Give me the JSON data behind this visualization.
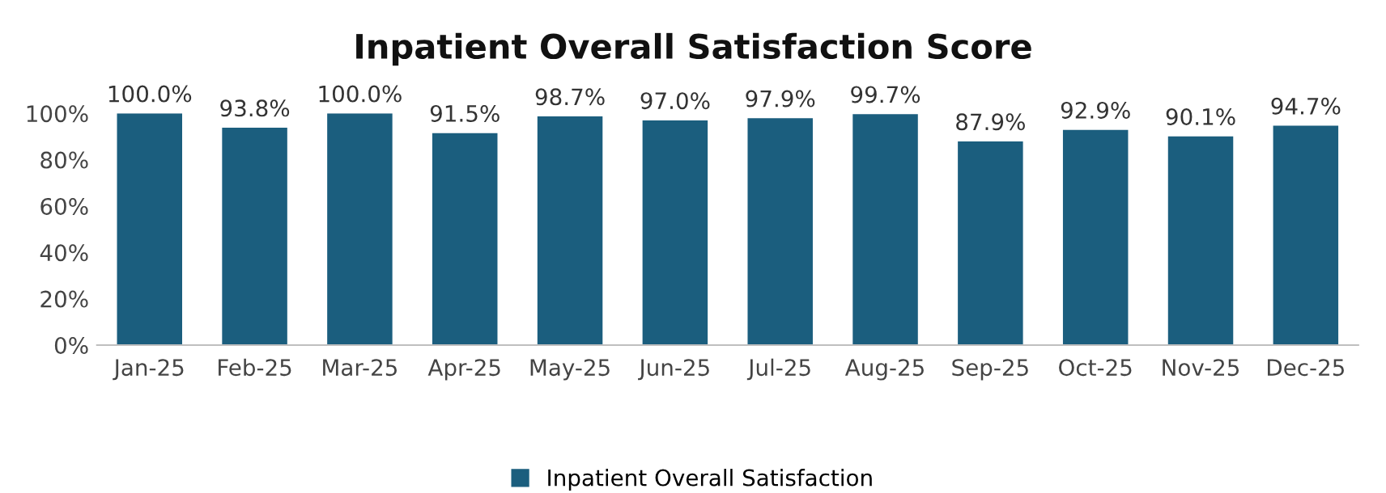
{
  "chart_data": {
    "type": "bar",
    "title": "Inpatient Overall Satisfaction Score",
    "categories": [
      "Jan-25",
      "Feb-25",
      "Mar-25",
      "Apr-25",
      "May-25",
      "Jun-25",
      "Jul-25",
      "Aug-25",
      "Sep-25",
      "Oct-25",
      "Nov-25",
      "Dec-25"
    ],
    "series": [
      {
        "name": "Inpatient Overall Satisfaction",
        "color": "#1b5e7e",
        "values": [
          100.0,
          93.8,
          100.0,
          91.5,
          98.7,
          97.0,
          97.9,
          99.7,
          87.9,
          92.9,
          90.1,
          94.7
        ],
        "value_labels": [
          "100.0%",
          "93.8%",
          "100.0%",
          "91.5%",
          "98.7%",
          "97.0%",
          "97.9%",
          "99.7%",
          "87.9%",
          "92.9%",
          "90.1%",
          "94.7%"
        ]
      }
    ],
    "ylim": [
      0,
      100
    ],
    "yticks": [
      {
        "value": 0,
        "label": "0%"
      },
      {
        "value": 20,
        "label": "20%"
      },
      {
        "value": 40,
        "label": "40%"
      },
      {
        "value": 60,
        "label": "60%"
      },
      {
        "value": 80,
        "label": "80%"
      },
      {
        "value": 100,
        "label": "100%"
      }
    ],
    "grid": false,
    "legend": "bottom"
  }
}
